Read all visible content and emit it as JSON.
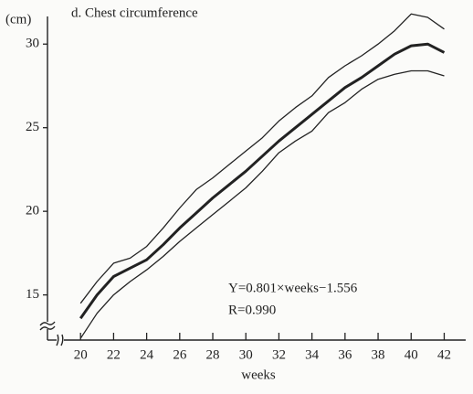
{
  "chart_data": {
    "type": "line",
    "title": "d. Chest circumference",
    "y_label": "(cm)",
    "x_label": "weeks",
    "annotations": [
      "Y=0.801×weeks−1.556",
      "R=0.990"
    ],
    "x": [
      20,
      21,
      22,
      23,
      24,
      25,
      26,
      27,
      28,
      29,
      30,
      31,
      32,
      33,
      34,
      35,
      36,
      37,
      38,
      39,
      40,
      41,
      42
    ],
    "series": [
      {
        "color": "#222222",
        "linewidth": 1.3,
        "values": [
          14.5,
          15.8,
          16.9,
          17.2,
          17.9,
          19.0,
          20.2,
          21.3,
          22.0,
          22.8,
          23.6,
          24.4,
          25.4,
          26.2,
          26.9,
          28.0,
          28.7,
          29.3,
          30.0,
          30.8,
          31.8,
          31.6,
          30.9
        ]
      },
      {
        "color": "#222222",
        "linewidth": 3,
        "values": [
          13.6,
          15.0,
          16.1,
          16.6,
          17.1,
          18.0,
          19.0,
          19.9,
          20.8,
          21.6,
          22.4,
          23.3,
          24.2,
          25.0,
          25.8,
          26.6,
          27.4,
          28.0,
          28.7,
          29.4,
          29.9,
          30.0,
          29.5
        ]
      },
      {
        "color": "#222222",
        "linewidth": 1.3,
        "values": [
          12.4,
          13.9,
          15.0,
          15.8,
          16.5,
          17.3,
          18.2,
          19.0,
          19.8,
          20.6,
          21.4,
          22.4,
          23.5,
          24.2,
          24.8,
          25.9,
          26.5,
          27.3,
          27.9,
          28.2,
          28.4,
          28.4,
          28.1
        ]
      }
    ],
    "xlim": [
      18,
      43.3
    ],
    "ylim": [
      12.3,
      32.2
    ],
    "xticks": [
      20,
      22,
      24,
      26,
      28,
      30,
      32,
      34,
      36,
      38,
      40,
      42
    ],
    "yticks": [
      15,
      20,
      25,
      30
    ]
  }
}
